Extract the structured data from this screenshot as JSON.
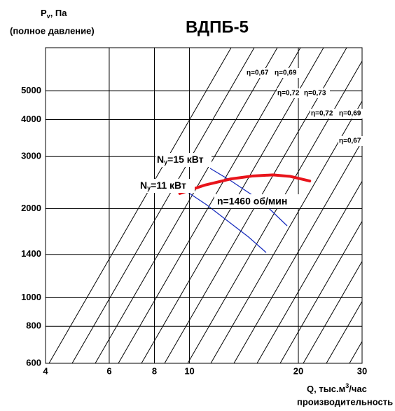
{
  "chart_data": {
    "type": "line",
    "title": "ВДПБ-5",
    "y_label": {
      "main": "P",
      "sub": "v",
      "rest": ", Па"
    },
    "y_label_note": "(полное давление)",
    "x_label": {
      "main": "Q, тыс.м",
      "sup": "3",
      "rest": "/час"
    },
    "x_label_note": "производительность",
    "x_log": true,
    "y_log": true,
    "grid": true,
    "xlim": [
      4,
      30
    ],
    "ylim": [
      600,
      7000
    ],
    "xticks": [
      4,
      6,
      8,
      10,
      20,
      30
    ],
    "yticks": [
      600,
      800,
      1000,
      1400,
      2000,
      3000,
      4000,
      5000
    ],
    "series": [
      {
        "name": "n=1460 об/мин",
        "color": "#e8141b",
        "x": [
          9.4,
          11,
          13,
          15,
          17,
          19,
          21.5
        ],
        "values": [
          2250,
          2400,
          2520,
          2580,
          2600,
          2570,
          2480
        ]
      }
    ],
    "annotations": [
      "η=0,67",
      "η=0,69",
      "η=0,72",
      "η=0,73",
      "η=0,72",
      "η=0,69",
      "η=0,67"
    ],
    "power_labels": [
      {
        "main": "N",
        "sub": "y",
        "rest": "=15 кВт"
      },
      {
        "main": "N",
        "sub": "y",
        "rest": "=11 кВт"
      }
    ]
  }
}
